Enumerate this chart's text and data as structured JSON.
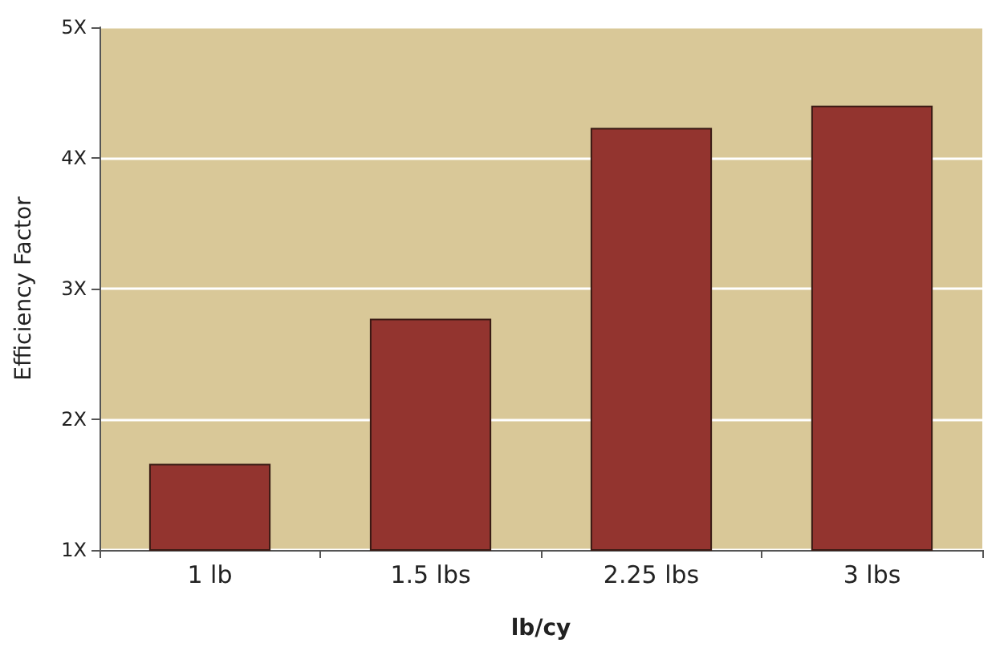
{
  "chart_data": {
    "type": "bar",
    "xlabel": "lb/cy",
    "ylabel": "Efficiency Factor",
    "categories": [
      "1 lb",
      "1.5 lbs",
      "2.25 lbs",
      "3 lbs"
    ],
    "values": [
      1.66,
      2.77,
      4.23,
      4.4
    ],
    "color": "#93342f",
    "ylim": [
      1,
      5
    ],
    "yticks": [
      {
        "value": 1,
        "label": "1X"
      },
      {
        "value": 2,
        "label": "2X"
      },
      {
        "value": 3,
        "label": "3X"
      },
      {
        "value": 4,
        "label": "4X"
      },
      {
        "value": 5,
        "label": "5X"
      }
    ],
    "grid": "y"
  }
}
